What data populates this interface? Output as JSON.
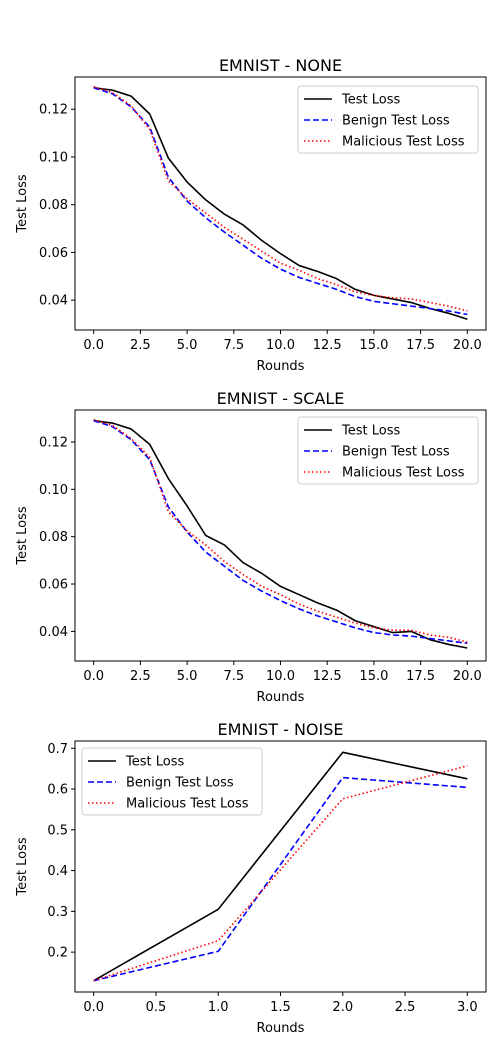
{
  "chart_data": [
    {
      "type": "line",
      "title": "EMNIST - NONE",
      "xlabel": "Rounds",
      "ylabel": "Test Loss",
      "xlim": [
        -1,
        21
      ],
      "ylim": [
        0.0275,
        0.1335
      ],
      "xticks": [
        0,
        2.5,
        5,
        7.5,
        10,
        12.5,
        15,
        17.5,
        20
      ],
      "xtick_labels": [
        "0.0",
        "2.5",
        "5.0",
        "7.5",
        "10.0",
        "12.5",
        "15.0",
        "17.5",
        "20.0"
      ],
      "yticks": [
        0.04,
        0.06,
        0.08,
        0.1,
        0.12
      ],
      "ytick_labels": [
        "0.04",
        "0.06",
        "0.08",
        "0.10",
        "0.12"
      ],
      "legend_position": "top-right",
      "x": [
        0,
        1,
        2,
        3,
        4,
        5,
        6,
        7,
        8,
        9,
        10,
        11,
        12,
        13,
        14,
        15,
        16,
        17,
        18,
        19,
        20
      ],
      "series": [
        {
          "name": "Test Loss",
          "color": "#000000",
          "dash": "solid",
          "values": [
            0.129,
            0.128,
            0.1255,
            0.118,
            0.0995,
            0.0895,
            0.082,
            0.076,
            0.0715,
            0.065,
            0.0595,
            0.0545,
            0.052,
            0.049,
            0.0445,
            0.042,
            0.0405,
            0.039,
            0.0365,
            0.0345,
            0.032
          ]
        },
        {
          "name": "Benign Test Loss",
          "color": "#0000ff",
          "dash": "dashed",
          "values": [
            0.129,
            0.1265,
            0.121,
            0.1125,
            0.0915,
            0.0815,
            0.0745,
            0.0685,
            0.063,
            0.0575,
            0.053,
            0.0495,
            0.047,
            0.0445,
            0.0415,
            0.0395,
            0.0385,
            0.0375,
            0.0365,
            0.0355,
            0.034
          ]
        },
        {
          "name": "Malicious Test Loss",
          "color": "#ff0000",
          "dash": "dotted",
          "values": [
            0.1295,
            0.127,
            0.1215,
            0.1115,
            0.09,
            0.0825,
            0.0765,
            0.0705,
            0.0655,
            0.0605,
            0.0555,
            0.0525,
            0.049,
            0.0465,
            0.0435,
            0.042,
            0.041,
            0.0405,
            0.039,
            0.0375,
            0.0355
          ]
        }
      ]
    },
    {
      "type": "line",
      "title": "EMNIST - SCALE",
      "xlabel": "Rounds",
      "ylabel": "Test Loss",
      "xlim": [
        -1,
        21
      ],
      "ylim": [
        0.0275,
        0.1335
      ],
      "xticks": [
        0,
        2.5,
        5,
        7.5,
        10,
        12.5,
        15,
        17.5,
        20
      ],
      "xtick_labels": [
        "0.0",
        "2.5",
        "5.0",
        "7.5",
        "10.0",
        "12.5",
        "15.0",
        "17.5",
        "20.0"
      ],
      "yticks": [
        0.04,
        0.06,
        0.08,
        0.1,
        0.12
      ],
      "ytick_labels": [
        "0.04",
        "0.06",
        "0.08",
        "0.10",
        "0.12"
      ],
      "legend_position": "top-right",
      "x": [
        0,
        1,
        2,
        3,
        4,
        5,
        6,
        7,
        8,
        9,
        10,
        11,
        12,
        13,
        14,
        15,
        16,
        17,
        18,
        19,
        20
      ],
      "series": [
        {
          "name": "Test Loss",
          "color": "#000000",
          "dash": "solid",
          "values": [
            0.129,
            0.128,
            0.1255,
            0.119,
            0.1045,
            0.093,
            0.0805,
            0.0765,
            0.069,
            0.0645,
            0.059,
            0.0555,
            0.052,
            0.049,
            0.0445,
            0.042,
            0.0395,
            0.04,
            0.0365,
            0.0345,
            0.033
          ]
        },
        {
          "name": "Benign Test Loss",
          "color": "#0000ff",
          "dash": "dashed",
          "values": [
            0.129,
            0.1265,
            0.121,
            0.1125,
            0.0925,
            0.082,
            0.0735,
            0.0675,
            0.0615,
            0.057,
            0.053,
            0.0495,
            0.0465,
            0.044,
            0.0415,
            0.0395,
            0.0385,
            0.038,
            0.037,
            0.036,
            0.035
          ]
        },
        {
          "name": "Malicious Test Loss",
          "color": "#ff0000",
          "dash": "dotted",
          "values": [
            0.1295,
            0.127,
            0.1215,
            0.1135,
            0.0905,
            0.0825,
            0.0765,
            0.0695,
            0.064,
            0.059,
            0.0555,
            0.0515,
            0.0485,
            0.046,
            0.0435,
            0.0415,
            0.0405,
            0.0405,
            0.0385,
            0.0375,
            0.0355
          ]
        }
      ]
    },
    {
      "type": "line",
      "title": "EMNIST - NOISE",
      "xlabel": "Rounds",
      "ylabel": "Test Loss",
      "xlim": [
        -0.15,
        3.15
      ],
      "ylim": [
        0.1022,
        0.7178
      ],
      "xticks": [
        0,
        0.5,
        1,
        1.5,
        2,
        2.5,
        3
      ],
      "xtick_labels": [
        "0.0",
        "0.5",
        "1.0",
        "1.5",
        "2.0",
        "2.5",
        "3.0"
      ],
      "yticks": [
        0.2,
        0.3,
        0.4,
        0.5,
        0.6,
        0.7
      ],
      "ytick_labels": [
        "0.2",
        "0.3",
        "0.4",
        "0.5",
        "0.6",
        "0.7"
      ],
      "legend_position": "top-left",
      "x": [
        0,
        1,
        2,
        3
      ],
      "series": [
        {
          "name": "Test Loss",
          "color": "#000000",
          "dash": "solid",
          "values": [
            0.13,
            0.305,
            0.69,
            0.625
          ]
        },
        {
          "name": "Benign Test Loss",
          "color": "#0000ff",
          "dash": "dashed",
          "values": [
            0.13,
            0.202,
            0.628,
            0.604
          ]
        },
        {
          "name": "Malicious Test Loss",
          "color": "#ff0000",
          "dash": "dotted",
          "values": [
            0.13,
            0.228,
            0.576,
            0.657
          ]
        }
      ]
    }
  ]
}
